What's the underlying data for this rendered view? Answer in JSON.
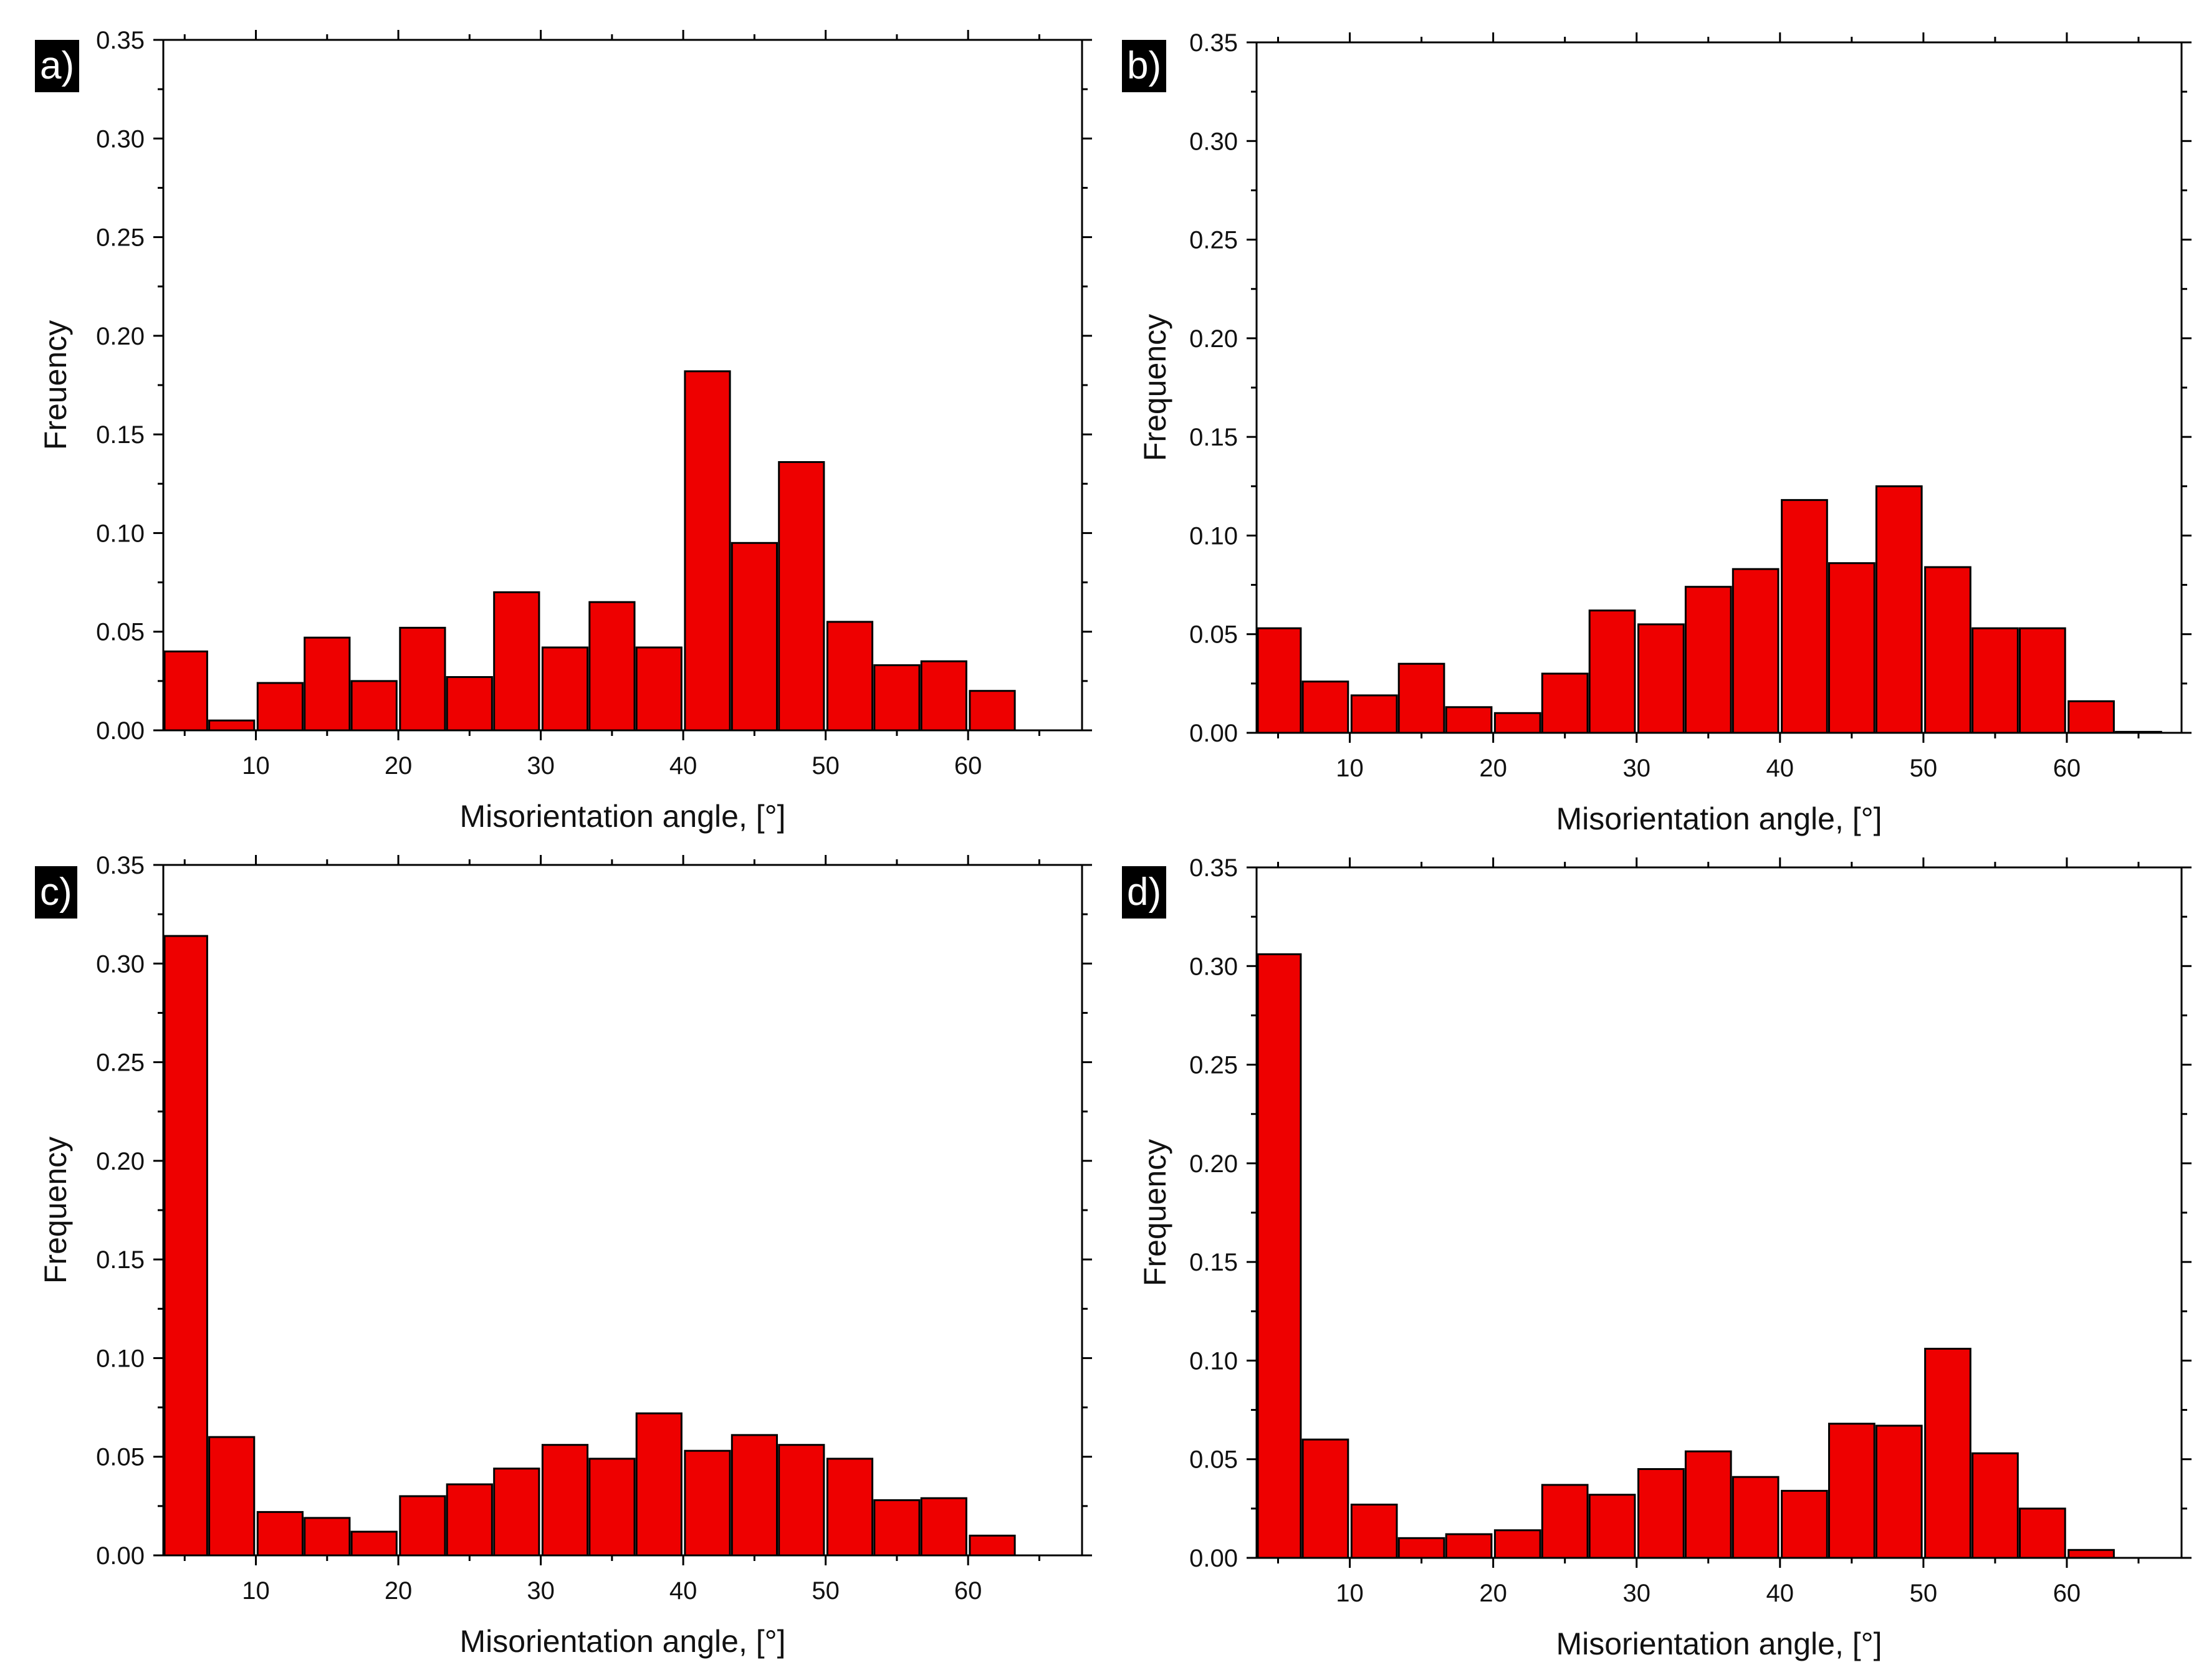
{
  "colors": {
    "bar_fill": "#ee0000",
    "bar_stroke": "#000000",
    "axis": "#000000"
  },
  "chart_data": [
    {
      "type": "bar",
      "panel_label": "a)",
      "xlabel": "Misorientation angle, [°]",
      "ylabel": "Freuency",
      "xlim": [
        3.5,
        68
      ],
      "ylim": [
        0,
        0.35
      ],
      "x_ticks": [
        "10",
        "20",
        "30",
        "40",
        "50",
        "60"
      ],
      "y_ticks": [
        "0.00",
        "0.05",
        "0.10",
        "0.15",
        "0.20",
        "0.25",
        "0.30",
        "0.35"
      ],
      "bin_centers": [
        5,
        8.3,
        11.7,
        15,
        18.3,
        21.7,
        25,
        28.3,
        31.7,
        35,
        38.3,
        41.7,
        45,
        48.3,
        51.7,
        55,
        58.3,
        61.7
      ],
      "values": [
        0.04,
        0.005,
        0.024,
        0.047,
        0.025,
        0.052,
        0.027,
        0.07,
        0.042,
        0.065,
        0.042,
        0.182,
        0.095,
        0.136,
        0.055,
        0.033,
        0.035,
        0.02
      ]
    },
    {
      "type": "bar",
      "panel_label": "b)",
      "xlabel": "Misorientation angle, [°]",
      "ylabel": "Frequency",
      "xlim": [
        3.5,
        68
      ],
      "ylim": [
        0,
        0.35
      ],
      "x_ticks": [
        "10",
        "20",
        "30",
        "40",
        "50",
        "60"
      ],
      "y_ticks": [
        "0.00",
        "0.05",
        "0.10",
        "0.15",
        "0.20",
        "0.25",
        "0.30",
        "0.35"
      ],
      "bin_centers": [
        5,
        8.3,
        11.7,
        15,
        18.3,
        21.7,
        25,
        28.3,
        31.7,
        35,
        38.3,
        41.7,
        45,
        48.3,
        51.7,
        55,
        58.3,
        61.7,
        65
      ],
      "values": [
        0.053,
        0.026,
        0.019,
        0.035,
        0.013,
        0.01,
        0.03,
        0.062,
        0.055,
        0.074,
        0.083,
        0.118,
        0.086,
        0.125,
        0.084,
        0.053,
        0.053,
        0.016,
        0.0005
      ]
    },
    {
      "type": "bar",
      "panel_label": "c)",
      "xlabel": "Misorientation angle, [°]",
      "ylabel": "Frequency",
      "xlim": [
        3.5,
        68
      ],
      "ylim": [
        0,
        0.35
      ],
      "x_ticks": [
        "10",
        "20",
        "30",
        "40",
        "50",
        "60"
      ],
      "y_ticks": [
        "0.00",
        "0.05",
        "0.10",
        "0.15",
        "0.20",
        "0.25",
        "0.30",
        "0.35"
      ],
      "bin_centers": [
        5,
        8.3,
        11.7,
        15,
        18.3,
        21.7,
        25,
        28.3,
        31.7,
        35,
        38.3,
        41.7,
        45,
        48.3,
        51.7,
        55,
        58.3,
        61.7
      ],
      "values": [
        0.314,
        0.06,
        0.022,
        0.019,
        0.012,
        0.03,
        0.036,
        0.044,
        0.056,
        0.049,
        0.072,
        0.053,
        0.061,
        0.056,
        0.049,
        0.028,
        0.029,
        0.01
      ]
    },
    {
      "type": "bar",
      "panel_label": "d)",
      "xlabel": "Misorientation angle, [°]",
      "ylabel": "Frequency",
      "xlim": [
        3.5,
        68
      ],
      "ylim": [
        0,
        0.35
      ],
      "x_ticks": [
        "10",
        "20",
        "30",
        "40",
        "50",
        "60"
      ],
      "y_ticks": [
        "0.00",
        "0.05",
        "0.10",
        "0.15",
        "0.20",
        "0.25",
        "0.30",
        "0.35"
      ],
      "bin_centers": [
        5,
        8.3,
        11.7,
        15,
        18.3,
        21.7,
        25,
        28.3,
        31.7,
        35,
        38.3,
        41.7,
        45,
        48.3,
        51.7,
        55,
        58.3,
        61.7
      ],
      "values": [
        0.306,
        0.06,
        0.027,
        0.01,
        0.012,
        0.014,
        0.037,
        0.032,
        0.045,
        0.054,
        0.041,
        0.034,
        0.068,
        0.067,
        0.106,
        0.053,
        0.025,
        0.004
      ]
    }
  ]
}
